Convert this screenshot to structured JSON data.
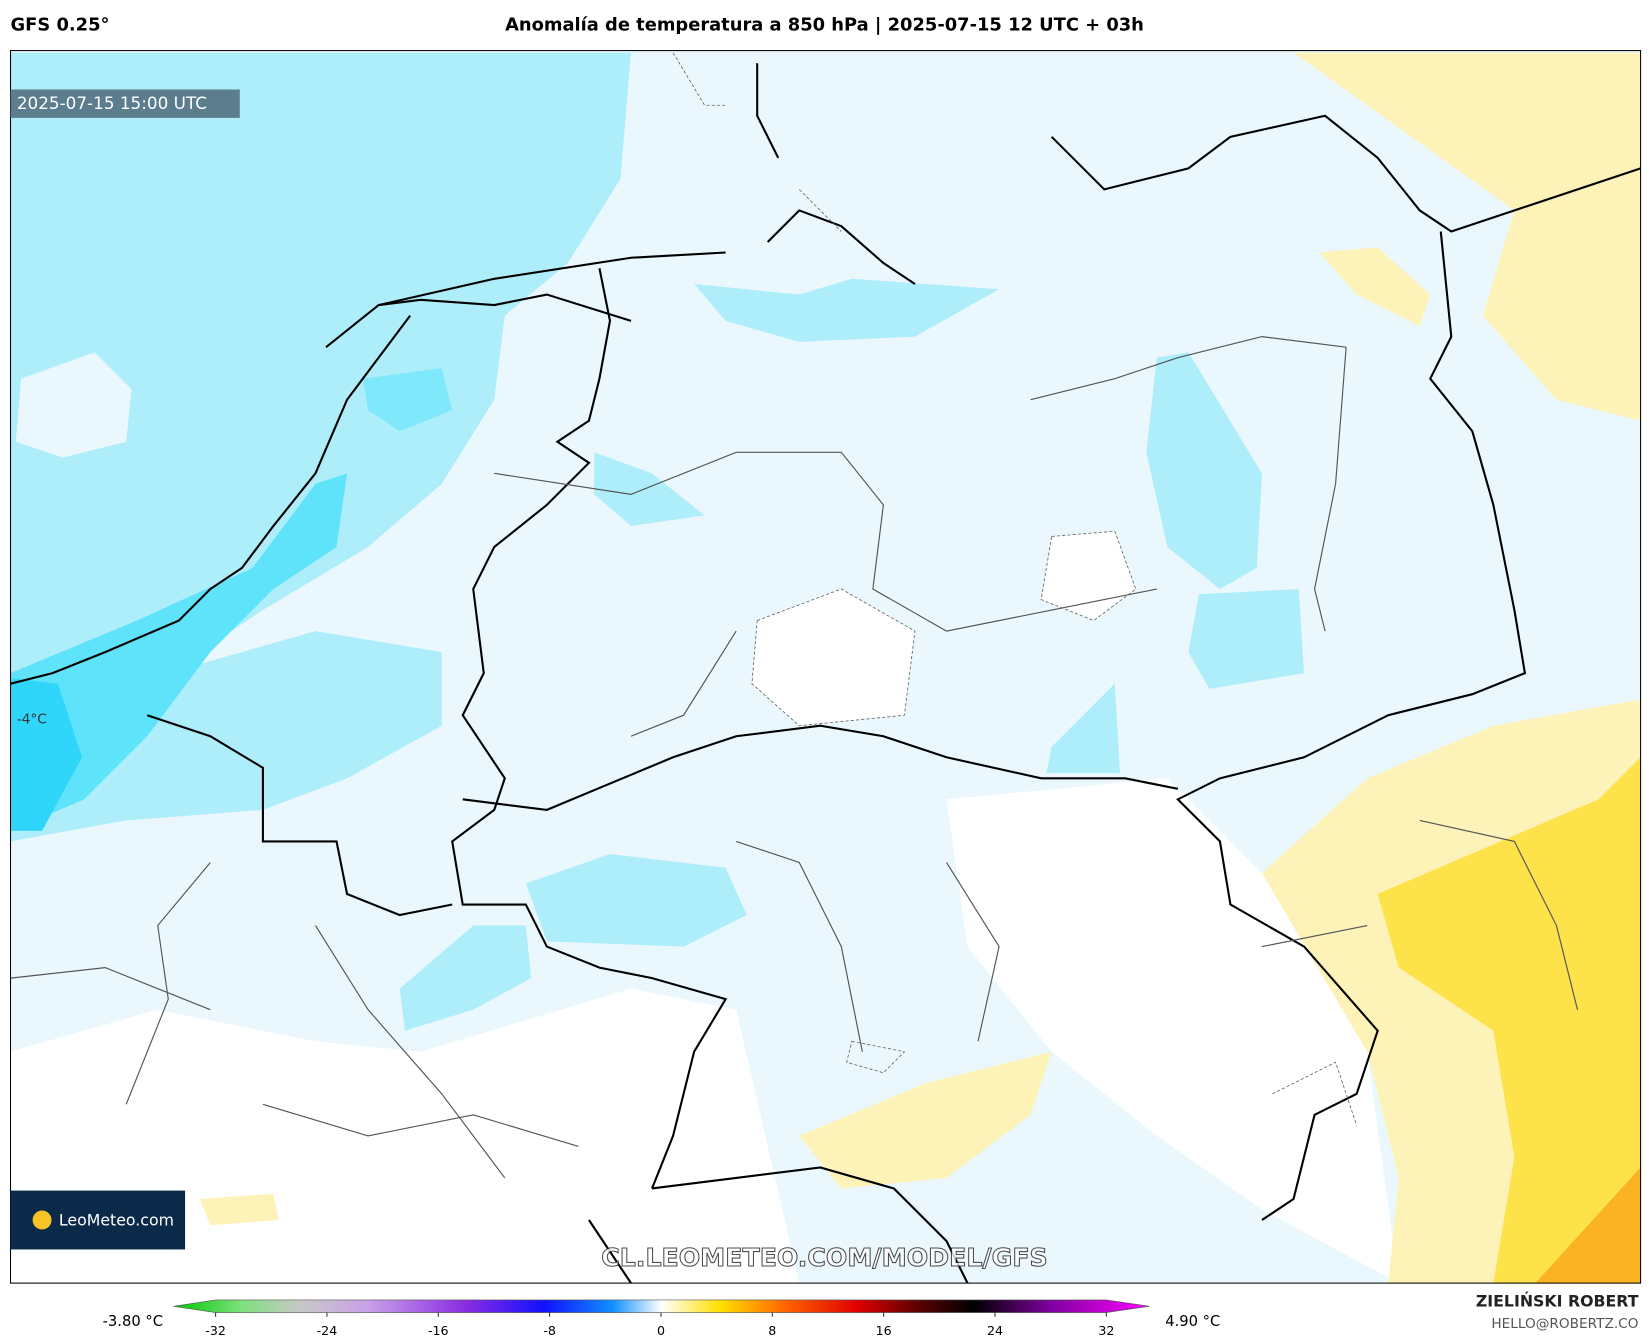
{
  "header": {
    "model": "GFS 0.25°",
    "title": "Anomalía de temperatura a 850 hPa | 2025-07-15 12 UTC + 03h"
  },
  "map": {
    "valid_time": "2025-07-15 15:00 UTC",
    "contour_label": "-4°C",
    "logo": "LeoMeteo.com",
    "watermark": "CL.LEOMETEO.COM/MODEL/GFS"
  },
  "colorbar": {
    "min_label": "-3.80 °C",
    "max_label": "4.90 °C",
    "range": [
      -32,
      32
    ],
    "ticks": [
      -32,
      -24,
      -16,
      -8,
      0,
      8,
      16,
      24,
      32
    ]
  },
  "footer": {
    "author": "ZIELIŃSKI ROBERT",
    "email": "HELLO@ROBERTZ.CO"
  }
}
